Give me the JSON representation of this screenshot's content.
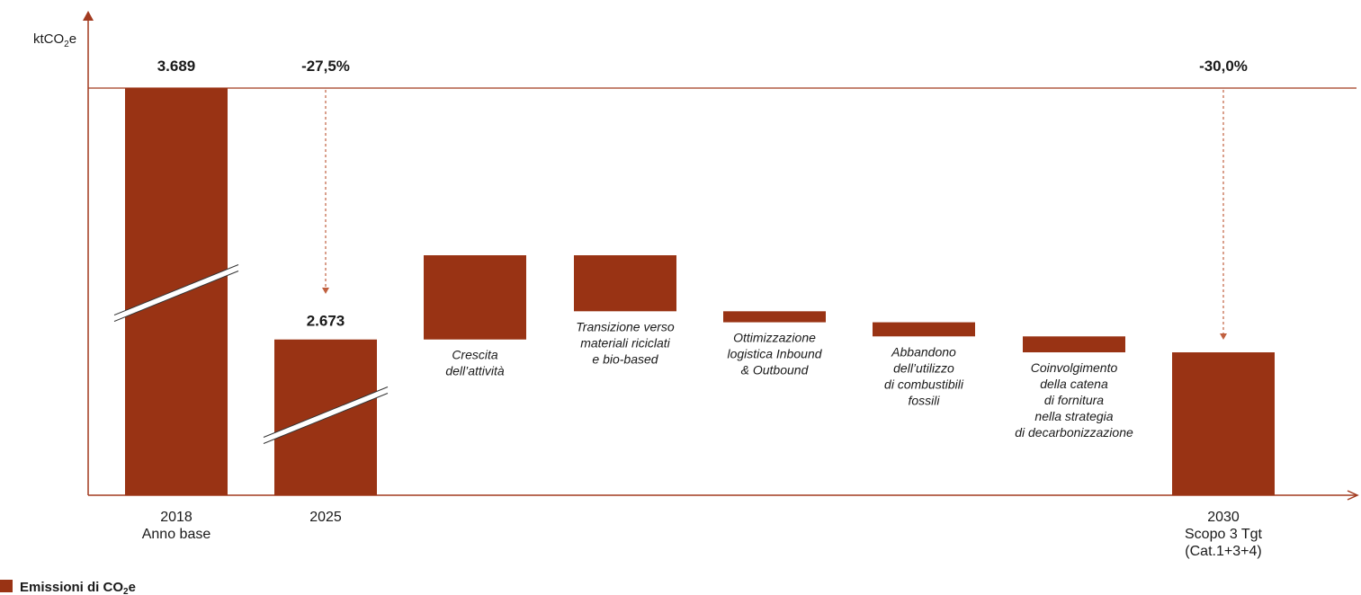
{
  "chart_data": {
    "type": "bar",
    "subtype": "waterfall",
    "y_unit_label": "ktCO2e",
    "y_axis_broken": true,
    "grid": false,
    "categories": [
      "2018 Anno base",
      "2025",
      "Crescita dell’attività",
      "Transizione verso materiali riciclati e bio-based",
      "Ottimizzazione logistica Inbound & Outbound",
      "Abbandono dell’utilizzo di combustibili fossili",
      "Coinvolgimento della catena di fornitura nella strategia di decarbonizzazione",
      "2030 Scopo 3 Tgt (Cat.1+3+4)"
    ],
    "bars": [
      {
        "kind": "total",
        "label_lines": [
          "2018",
          "Anno base"
        ],
        "value": 3689,
        "value_label": "3.689",
        "pct_label": "",
        "broken": true
      },
      {
        "kind": "total",
        "label_lines": [
          "2025"
        ],
        "value": 2673,
        "value_label": "2.673",
        "pct_label": "-27,5%",
        "broken": true
      },
      {
        "kind": "step",
        "label_lines": [
          "Crescita",
          "dell’attività"
        ],
        "start": 2673,
        "end": 3270
      },
      {
        "kind": "step",
        "label_lines": [
          "Transizione verso",
          "materiali riciclati",
          "e bio-based"
        ],
        "start": 3270,
        "end": 2873
      },
      {
        "kind": "step",
        "label_lines": [
          "Ottimizzazione",
          "logistica Inbound",
          "& Outbound"
        ],
        "start": 2873,
        "end": 2795
      },
      {
        "kind": "step",
        "label_lines": [
          "Abbandono",
          "dell’utilizzo",
          "di combustibili",
          "fossili"
        ],
        "start": 2795,
        "end": 2695
      },
      {
        "kind": "step",
        "label_lines": [
          "Coinvolgimento",
          "della catena",
          "di fornitura",
          "nella strategia",
          "di decarbonizzazione"
        ],
        "start": 2695,
        "end": 2582
      },
      {
        "kind": "total",
        "label_lines": [
          "2030",
          "Scopo 3 Tgt",
          "(Cat.1+3+4)"
        ],
        "value": 2582,
        "value_label": "",
        "pct_label": "-30,0%",
        "broken": false
      }
    ],
    "legend": [
      {
        "name": "Emissioni di CO2e",
        "color": "#993314"
      }
    ],
    "legend_position": "bottom-left",
    "reference_line_value": 3689
  },
  "colors": {
    "bar": "#993314",
    "axis": "#a23a1f",
    "arrow": "#c0603f",
    "text": "#1a1a1a"
  }
}
